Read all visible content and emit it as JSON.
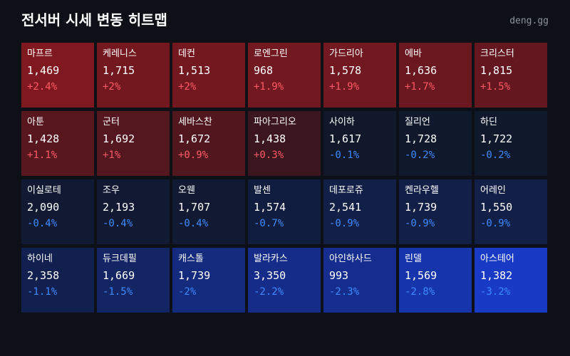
{
  "header": {
    "title": "전서버 시세 변동 히트맵",
    "brand": "deng.gg"
  },
  "colors": {
    "positive_text": "#ff5a66",
    "negative_text": "#3d8bff",
    "background": "#0d1117"
  },
  "chart_data": {
    "type": "heatmap",
    "title": "전서버 시세 변동 히트맵",
    "columns": 7,
    "cells": [
      {
        "name": "마프르",
        "price": "1,469",
        "change": "+2.4%",
        "change_value": 2.4
      },
      {
        "name": "케레니스",
        "price": "1,715",
        "change": "+2%",
        "change_value": 2.0
      },
      {
        "name": "데컨",
        "price": "1,513",
        "change": "+2%",
        "change_value": 2.0
      },
      {
        "name": "로엔그린",
        "price": "968",
        "change": "+1.9%",
        "change_value": 1.9
      },
      {
        "name": "가드리아",
        "price": "1,578",
        "change": "+1.9%",
        "change_value": 1.9
      },
      {
        "name": "에바",
        "price": "1,636",
        "change": "+1.7%",
        "change_value": 1.7
      },
      {
        "name": "크리스터",
        "price": "1,815",
        "change": "+1.5%",
        "change_value": 1.5
      },
      {
        "name": "아툰",
        "price": "1,428",
        "change": "+1.1%",
        "change_value": 1.1
      },
      {
        "name": "군터",
        "price": "1,692",
        "change": "+1%",
        "change_value": 1.0
      },
      {
        "name": "세바스찬",
        "price": "1,672",
        "change": "+0.9%",
        "change_value": 0.9
      },
      {
        "name": "파아그리오",
        "price": "1,438",
        "change": "+0.3%",
        "change_value": 0.3
      },
      {
        "name": "사이하",
        "price": "1,617",
        "change": "-0.1%",
        "change_value": -0.1
      },
      {
        "name": "질리언",
        "price": "1,728",
        "change": "-0.2%",
        "change_value": -0.2
      },
      {
        "name": "하딘",
        "price": "1,722",
        "change": "-0.2%",
        "change_value": -0.2
      },
      {
        "name": "이실로테",
        "price": "2,090",
        "change": "-0.4%",
        "change_value": -0.4
      },
      {
        "name": "조우",
        "price": "2,193",
        "change": "-0.4%",
        "change_value": -0.4
      },
      {
        "name": "오웬",
        "price": "1,707",
        "change": "-0.4%",
        "change_value": -0.4
      },
      {
        "name": "발센",
        "price": "1,574",
        "change": "-0.7%",
        "change_value": -0.7
      },
      {
        "name": "데포로쥬",
        "price": "2,541",
        "change": "-0.9%",
        "change_value": -0.9
      },
      {
        "name": "켄라우헬",
        "price": "1,739",
        "change": "-0.9%",
        "change_value": -0.9
      },
      {
        "name": "어레인",
        "price": "1,550",
        "change": "-0.9%",
        "change_value": -0.9
      },
      {
        "name": "하이네",
        "price": "2,358",
        "change": "-1.1%",
        "change_value": -1.1
      },
      {
        "name": "듀크데필",
        "price": "1,669",
        "change": "-1.5%",
        "change_value": -1.5
      },
      {
        "name": "캐스톨",
        "price": "1,739",
        "change": "-2%",
        "change_value": -2.0
      },
      {
        "name": "발라카스",
        "price": "3,350",
        "change": "-2.2%",
        "change_value": -2.2
      },
      {
        "name": "아인하사드",
        "price": "993",
        "change": "-2.3%",
        "change_value": -2.3
      },
      {
        "name": "린델",
        "price": "1,569",
        "change": "-2.8%",
        "change_value": -2.8
      },
      {
        "name": "아스테어",
        "price": "1,382",
        "change": "-3.2%",
        "change_value": -3.2
      }
    ]
  }
}
